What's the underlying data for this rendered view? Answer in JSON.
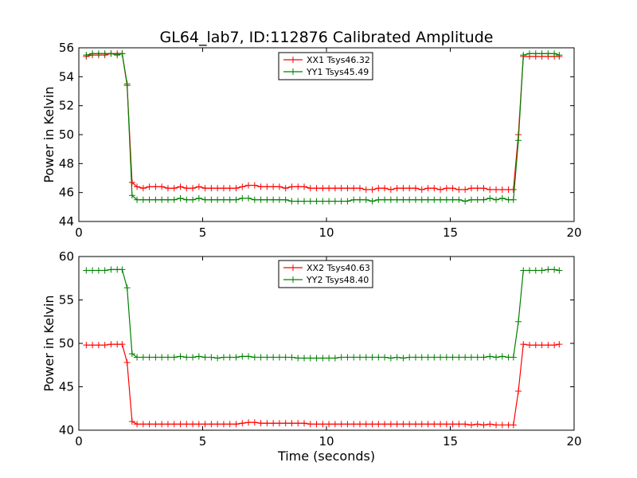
{
  "chart_data": [
    {
      "type": "line",
      "title": "GL64_lab7, ID:112876 Calibrated Amplitude",
      "xlabel": "",
      "ylabel": "Power in Kelvin",
      "xlim": [
        0,
        20
      ],
      "ylim": [
        44,
        56
      ],
      "xticks": [
        0,
        5,
        10,
        15,
        20
      ],
      "yticks": [
        44,
        46,
        48,
        50,
        52,
        54,
        56
      ],
      "grid": false,
      "legend_position": "top-center",
      "x": [
        0.3,
        0.55,
        0.8,
        1.05,
        1.3,
        1.55,
        1.75,
        1.95,
        2.15,
        2.35,
        2.6,
        2.85,
        3.1,
        3.35,
        3.6,
        3.85,
        4.1,
        4.35,
        4.6,
        4.85,
        5.1,
        5.35,
        5.6,
        5.85,
        6.1,
        6.35,
        6.6,
        6.85,
        7.1,
        7.35,
        7.6,
        7.85,
        8.1,
        8.35,
        8.6,
        8.85,
        9.1,
        9.35,
        9.6,
        9.85,
        10.1,
        10.35,
        10.6,
        10.85,
        11.1,
        11.35,
        11.6,
        11.85,
        12.1,
        12.35,
        12.6,
        12.85,
        13.1,
        13.35,
        13.6,
        13.85,
        14.1,
        14.35,
        14.6,
        14.85,
        15.1,
        15.35,
        15.6,
        15.85,
        16.1,
        16.35,
        16.6,
        16.85,
        17.1,
        17.35,
        17.55,
        17.75,
        17.95,
        18.2,
        18.45,
        18.7,
        18.95,
        19.2,
        19.4
      ],
      "series": [
        {
          "name": "XX1 Tsys46.32",
          "color": "#ff0000",
          "values": [
            55.4,
            55.5,
            55.5,
            55.5,
            55.6,
            55.6,
            55.6,
            53.4,
            46.7,
            46.4,
            46.3,
            46.4,
            46.4,
            46.4,
            46.3,
            46.3,
            46.4,
            46.3,
            46.3,
            46.4,
            46.3,
            46.3,
            46.3,
            46.3,
            46.3,
            46.3,
            46.4,
            46.5,
            46.5,
            46.4,
            46.4,
            46.4,
            46.4,
            46.3,
            46.4,
            46.4,
            46.4,
            46.3,
            46.3,
            46.3,
            46.3,
            46.3,
            46.3,
            46.3,
            46.3,
            46.3,
            46.2,
            46.2,
            46.3,
            46.3,
            46.2,
            46.3,
            46.3,
            46.3,
            46.3,
            46.2,
            46.3,
            46.3,
            46.2,
            46.3,
            46.3,
            46.2,
            46.2,
            46.3,
            46.3,
            46.3,
            46.2,
            46.2,
            46.2,
            46.2,
            46.2,
            50.0,
            55.4,
            55.4,
            55.4,
            55.4,
            55.4,
            55.4,
            55.4
          ]
        },
        {
          "name": "YY1 Tsys45.49",
          "color": "#008000",
          "values": [
            55.5,
            55.6,
            55.6,
            55.6,
            55.6,
            55.5,
            55.6,
            53.5,
            45.8,
            45.5,
            45.5,
            45.5,
            45.5,
            45.5,
            45.5,
            45.5,
            45.6,
            45.5,
            45.5,
            45.6,
            45.5,
            45.5,
            45.5,
            45.5,
            45.5,
            45.5,
            45.6,
            45.6,
            45.5,
            45.5,
            45.5,
            45.5,
            45.5,
            45.5,
            45.4,
            45.4,
            45.4,
            45.4,
            45.4,
            45.4,
            45.4,
            45.4,
            45.4,
            45.4,
            45.5,
            45.5,
            45.5,
            45.4,
            45.5,
            45.5,
            45.5,
            45.5,
            45.5,
            45.5,
            45.5,
            45.5,
            45.5,
            45.5,
            45.5,
            45.5,
            45.5,
            45.5,
            45.4,
            45.5,
            45.5,
            45.5,
            45.6,
            45.5,
            45.6,
            45.5,
            45.5,
            49.6,
            55.5,
            55.6,
            55.6,
            55.6,
            55.6,
            55.6,
            55.5
          ]
        }
      ]
    },
    {
      "type": "line",
      "title": "",
      "xlabel": "Time (seconds)",
      "ylabel": "Power in Kelvin",
      "xlim": [
        0,
        20
      ],
      "ylim": [
        40,
        60
      ],
      "xticks": [
        0,
        5,
        10,
        15,
        20
      ],
      "yticks": [
        40,
        45,
        50,
        55,
        60
      ],
      "grid": false,
      "legend_position": "top-center",
      "x": [
        0.3,
        0.55,
        0.8,
        1.05,
        1.3,
        1.55,
        1.75,
        1.95,
        2.15,
        2.35,
        2.6,
        2.85,
        3.1,
        3.35,
        3.6,
        3.85,
        4.1,
        4.35,
        4.6,
        4.85,
        5.1,
        5.35,
        5.6,
        5.85,
        6.1,
        6.35,
        6.6,
        6.85,
        7.1,
        7.35,
        7.6,
        7.85,
        8.1,
        8.35,
        8.6,
        8.85,
        9.1,
        9.35,
        9.6,
        9.85,
        10.1,
        10.35,
        10.6,
        10.85,
        11.1,
        11.35,
        11.6,
        11.85,
        12.1,
        12.35,
        12.6,
        12.85,
        13.1,
        13.35,
        13.6,
        13.85,
        14.1,
        14.35,
        14.6,
        14.85,
        15.1,
        15.35,
        15.6,
        15.85,
        16.1,
        16.35,
        16.6,
        16.85,
        17.1,
        17.35,
        17.55,
        17.75,
        17.95,
        18.2,
        18.45,
        18.7,
        18.95,
        19.2,
        19.4
      ],
      "series": [
        {
          "name": "XX2 Tsys40.63",
          "color": "#ff0000",
          "values": [
            49.8,
            49.8,
            49.8,
            49.8,
            49.9,
            49.9,
            49.9,
            47.8,
            41.0,
            40.7,
            40.7,
            40.7,
            40.7,
            40.7,
            40.7,
            40.7,
            40.7,
            40.7,
            40.7,
            40.7,
            40.7,
            40.7,
            40.7,
            40.7,
            40.7,
            40.7,
            40.8,
            40.9,
            40.9,
            40.8,
            40.8,
            40.8,
            40.8,
            40.8,
            40.8,
            40.8,
            40.8,
            40.7,
            40.7,
            40.7,
            40.7,
            40.7,
            40.7,
            40.7,
            40.7,
            40.7,
            40.7,
            40.7,
            40.7,
            40.7,
            40.7,
            40.7,
            40.7,
            40.7,
            40.7,
            40.7,
            40.7,
            40.7,
            40.7,
            40.7,
            40.7,
            40.7,
            40.7,
            40.6,
            40.7,
            40.6,
            40.7,
            40.6,
            40.6,
            40.6,
            40.6,
            44.5,
            49.9,
            49.8,
            49.8,
            49.8,
            49.8,
            49.8,
            49.9
          ]
        },
        {
          "name": "YY2 Tsys48.40",
          "color": "#008000",
          "values": [
            58.4,
            58.4,
            58.4,
            58.4,
            58.5,
            58.5,
            58.5,
            56.4,
            48.8,
            48.4,
            48.4,
            48.4,
            48.4,
            48.4,
            48.4,
            48.4,
            48.5,
            48.4,
            48.4,
            48.5,
            48.4,
            48.4,
            48.3,
            48.4,
            48.4,
            48.4,
            48.5,
            48.5,
            48.4,
            48.4,
            48.4,
            48.4,
            48.4,
            48.4,
            48.4,
            48.3,
            48.3,
            48.3,
            48.3,
            48.3,
            48.3,
            48.3,
            48.4,
            48.4,
            48.4,
            48.4,
            48.4,
            48.4,
            48.4,
            48.4,
            48.3,
            48.4,
            48.3,
            48.4,
            48.4,
            48.4,
            48.4,
            48.4,
            48.4,
            48.4,
            48.4,
            48.4,
            48.4,
            48.4,
            48.4,
            48.4,
            48.5,
            48.4,
            48.5,
            48.4,
            48.4,
            52.5,
            58.4,
            58.4,
            58.4,
            58.4,
            58.5,
            58.5,
            58.4
          ]
        }
      ]
    }
  ]
}
